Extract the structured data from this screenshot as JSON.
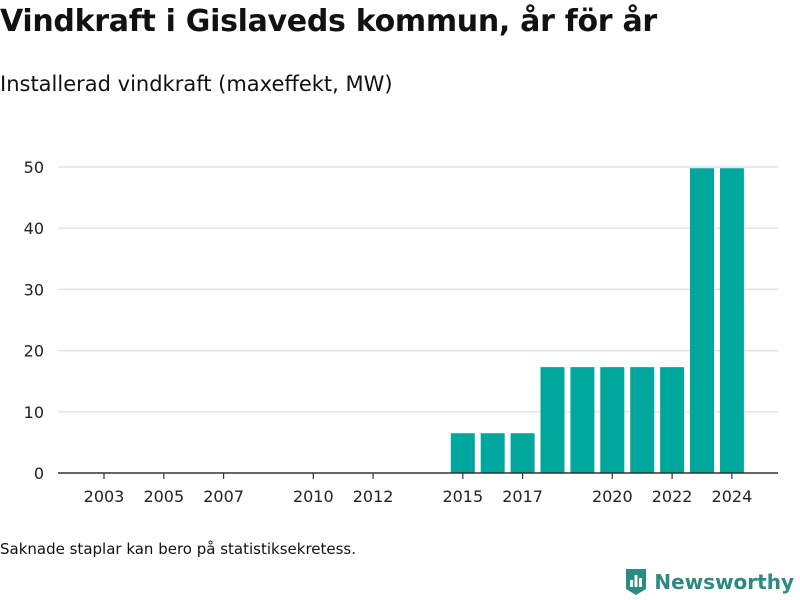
{
  "title": "Vindkraft i Gislaveds kommun, år för år",
  "subtitle": "Installerad vindkraft (maxeffekt, MW)",
  "footnote": "Saknade staplar kan bero på statistiksekretess.",
  "brand": {
    "name": "Newsworthy",
    "icon": "bar-chart-logo-icon"
  },
  "colors": {
    "bar": "#00a79d",
    "grid": "#dddddd",
    "axis": "#333333",
    "brand": "#2b8a82"
  },
  "chart_data": {
    "type": "bar",
    "title": "Vindkraft i Gislaveds kommun, år för år",
    "subtitle": "Installerad vindkraft (maxeffekt, MW)",
    "xlabel": "",
    "ylabel": "",
    "categories": [
      "2003",
      "2004",
      "2005",
      "2006",
      "2007",
      "2008",
      "2009",
      "2010",
      "2011",
      "2012",
      "2013",
      "2014",
      "2015",
      "2016",
      "2017",
      "2018",
      "2019",
      "2020",
      "2021",
      "2022",
      "2023",
      "2024"
    ],
    "values": [
      0,
      0,
      0,
      0,
      0,
      0,
      0,
      0,
      0,
      0,
      0,
      0,
      6.5,
      6.5,
      6.5,
      17.3,
      17.3,
      17.3,
      17.3,
      17.3,
      49.8,
      49.8
    ],
    "xticks": [
      "2003",
      "2005",
      "2007",
      "2010",
      "2012",
      "2015",
      "2017",
      "2020",
      "2022",
      "2024"
    ],
    "yticks": [
      0,
      10,
      20,
      30,
      40,
      50
    ],
    "ylim": [
      0,
      55
    ],
    "grid": true,
    "legend": "none"
  }
}
